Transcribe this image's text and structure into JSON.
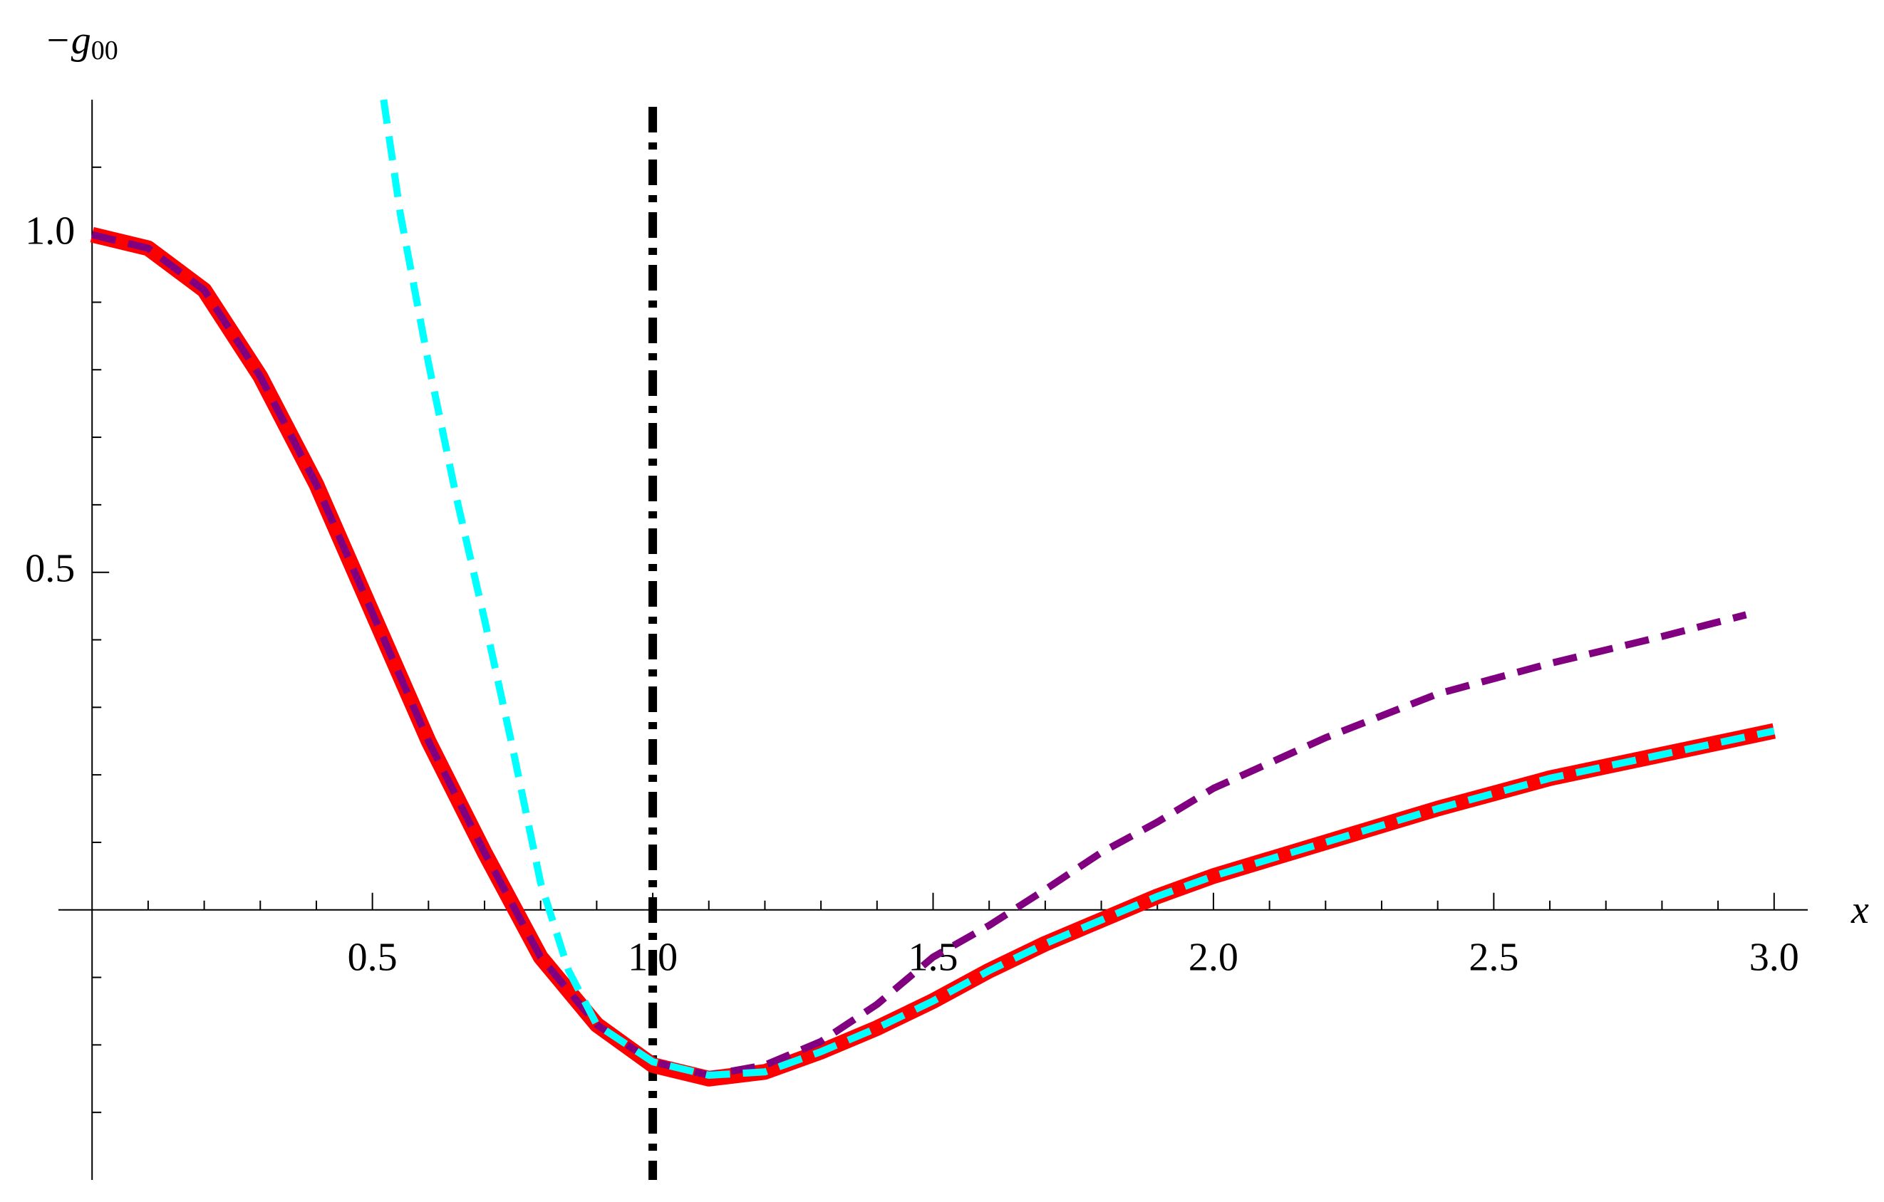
{
  "chart_data": {
    "type": "line",
    "y_label": "−g",
    "y_label_subscript": "00",
    "x_label": "x",
    "xlim": [
      -0.06,
      3.06
    ],
    "ylim": [
      -0.4,
      1.2
    ],
    "xticks": [
      0.5,
      {
        "value": 1,
        "label": "1.0"
      },
      1.5,
      {
        "value": 2,
        "label": "2.0"
      },
      2.5,
      {
        "value": 3,
        "label": "3.0"
      }
    ],
    "yticks": [
      0.5,
      {
        "value": 1,
        "label": "1.0"
      }
    ],
    "xminorticks": [
      0.1,
      0.2,
      0.3,
      0.4,
      0.6,
      0.7,
      0.8,
      0.9,
      1.1,
      1.2,
      1.3,
      1.4,
      1.6,
      1.7,
      1.8,
      1.9,
      2.1,
      2.2,
      2.3,
      2.4,
      2.6,
      2.7,
      2.8,
      2.9
    ],
    "yminorticks": [
      -0.3,
      -0.2,
      -0.1,
      0.1,
      0.2,
      0.3,
      0.4,
      0.6,
      0.7,
      0.8,
      0.9,
      1.1
    ],
    "vline": {
      "x": 1,
      "color": "#000000"
    },
    "series": [
      {
        "color": "#ff0000",
        "style": "solid",
        "x": [
          0,
          0.1,
          0.2,
          0.3,
          0.4,
          0.5,
          0.6,
          0.7,
          0.8,
          0.9,
          1.0,
          1.1,
          1.2,
          1.3,
          1.4,
          1.5,
          1.6,
          1.7,
          1.8,
          1.9,
          2.0,
          2.2,
          2.4,
          2.6,
          2.8,
          3.0
        ],
        "values": [
          1.0,
          0.98,
          0.918,
          0.79,
          0.63,
          0.44,
          0.25,
          0.085,
          -0.07,
          -0.17,
          -0.23,
          -0.25,
          -0.24,
          -0.21,
          -0.175,
          -0.135,
          -0.09,
          -0.05,
          -0.015,
          0.02,
          0.05,
          0.1,
          0.15,
          0.195,
          0.23,
          0.265
        ]
      },
      {
        "color": "#800080",
        "style": "dashed",
        "x": [
          0,
          0.1,
          0.2,
          0.3,
          0.4,
          0.5,
          0.6,
          0.7,
          0.8,
          0.9,
          1.0,
          1.1,
          1.2,
          1.3,
          1.4,
          1.5,
          1.6,
          1.7,
          1.8,
          1.9,
          2.0,
          2.2,
          2.4,
          2.6,
          2.8,
          2.95
        ],
        "values": [
          1.0,
          0.98,
          0.918,
          0.79,
          0.63,
          0.44,
          0.25,
          0.085,
          -0.07,
          -0.17,
          -0.225,
          -0.245,
          -0.23,
          -0.195,
          -0.14,
          -0.07,
          -0.023,
          0.03,
          0.085,
          0.13,
          0.18,
          0.255,
          0.32,
          0.365,
          0.405,
          0.437
        ]
      },
      {
        "color": "#00ffff",
        "style": "dashed",
        "x": [
          0.52,
          0.55,
          0.6,
          0.65,
          0.7,
          0.75,
          0.8,
          0.85,
          0.9,
          1.0,
          1.1,
          1.2,
          1.3,
          1.4,
          1.5,
          1.6,
          1.7,
          1.8,
          1.9,
          2.0,
          2.2,
          2.4,
          2.6,
          2.8,
          3.0
        ],
        "values": [
          1.2,
          1.03,
          0.81,
          0.61,
          0.43,
          0.24,
          0.04,
          -0.09,
          -0.17,
          -0.225,
          -0.245,
          -0.24,
          -0.21,
          -0.175,
          -0.135,
          -0.09,
          -0.05,
          -0.015,
          0.02,
          0.05,
          0.1,
          0.15,
          0.195,
          0.23,
          0.265
        ]
      }
    ]
  }
}
